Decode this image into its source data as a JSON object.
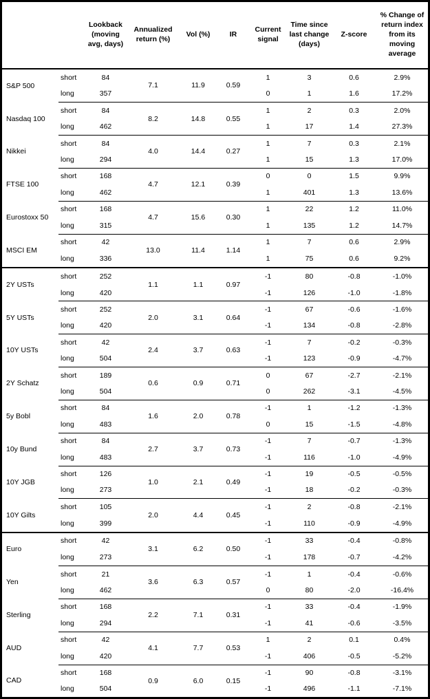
{
  "colors": {
    "text": "#000000",
    "border": "#000000",
    "background": "#ffffff"
  },
  "table": {
    "headers": [
      "",
      "",
      "Lookback\n(moving\navg, days)",
      "Annualized\nreturn (%)",
      "Vol (%)",
      "IR",
      "Current\nsignal",
      "Time since\nlast change\n(days)",
      "Z-score",
      "% Change of\nreturn index\nfrom its\nmoving\naverage"
    ],
    "sections": [
      {
        "groups": [
          {
            "asset": "S&P 500",
            "ann_return": "7.1",
            "vol": "11.9",
            "ir": "0.59",
            "rows": [
              {
                "horizon": "short",
                "lookback": "84",
                "signal": "1",
                "time_since": "3",
                "z_score": "0.6",
                "pct_change": "2.9%"
              },
              {
                "horizon": "long",
                "lookback": "357",
                "signal": "0",
                "time_since": "1",
                "z_score": "1.6",
                "pct_change": "17.2%"
              }
            ]
          },
          {
            "asset": "Nasdaq 100",
            "ann_return": "8.2",
            "vol": "14.8",
            "ir": "0.55",
            "rows": [
              {
                "horizon": "short",
                "lookback": "84",
                "signal": "1",
                "time_since": "2",
                "z_score": "0.3",
                "pct_change": "2.0%"
              },
              {
                "horizon": "long",
                "lookback": "462",
                "signal": "1",
                "time_since": "17",
                "z_score": "1.4",
                "pct_change": "27.3%"
              }
            ]
          },
          {
            "asset": "Nikkei",
            "ann_return": "4.0",
            "vol": "14.4",
            "ir": "0.27",
            "rows": [
              {
                "horizon": "short",
                "lookback": "84",
                "signal": "1",
                "time_since": "7",
                "z_score": "0.3",
                "pct_change": "2.1%"
              },
              {
                "horizon": "long",
                "lookback": "294",
                "signal": "1",
                "time_since": "15",
                "z_score": "1.3",
                "pct_change": "17.0%"
              }
            ]
          },
          {
            "asset": "FTSE 100",
            "ann_return": "4.7",
            "vol": "12.1",
            "ir": "0.39",
            "rows": [
              {
                "horizon": "short",
                "lookback": "168",
                "signal": "0",
                "time_since": "0",
                "z_score": "1.5",
                "pct_change": "9.9%"
              },
              {
                "horizon": "long",
                "lookback": "462",
                "signal": "1",
                "time_since": "401",
                "z_score": "1.3",
                "pct_change": "13.6%"
              }
            ]
          },
          {
            "asset": "Eurostoxx 50",
            "ann_return": "4.7",
            "vol": "15.6",
            "ir": "0.30",
            "rows": [
              {
                "horizon": "short",
                "lookback": "168",
                "signal": "1",
                "time_since": "22",
                "z_score": "1.2",
                "pct_change": "11.0%"
              },
              {
                "horizon": "long",
                "lookback": "315",
                "signal": "1",
                "time_since": "135",
                "z_score": "1.2",
                "pct_change": "14.7%"
              }
            ]
          },
          {
            "asset": "MSCI EM",
            "ann_return": "13.0",
            "vol": "11.4",
            "ir": "1.14",
            "rows": [
              {
                "horizon": "short",
                "lookback": "42",
                "signal": "1",
                "time_since": "7",
                "z_score": "0.6",
                "pct_change": "2.9%"
              },
              {
                "horizon": "long",
                "lookback": "336",
                "signal": "1",
                "time_since": "75",
                "z_score": "0.6",
                "pct_change": "9.2%"
              }
            ]
          }
        ]
      },
      {
        "groups": [
          {
            "asset": "2Y USTs",
            "ann_return": "1.1",
            "vol": "1.1",
            "ir": "0.97",
            "rows": [
              {
                "horizon": "short",
                "lookback": "252",
                "signal": "-1",
                "time_since": "80",
                "z_score": "-0.8",
                "pct_change": "-1.0%"
              },
              {
                "horizon": "long",
                "lookback": "420",
                "signal": "-1",
                "time_since": "126",
                "z_score": "-1.0",
                "pct_change": "-1.8%"
              }
            ]
          },
          {
            "asset": "5Y USTs",
            "ann_return": "2.0",
            "vol": "3.1",
            "ir": "0.64",
            "rows": [
              {
                "horizon": "short",
                "lookback": "252",
                "signal": "-1",
                "time_since": "67",
                "z_score": "-0.6",
                "pct_change": "-1.6%"
              },
              {
                "horizon": "long",
                "lookback": "420",
                "signal": "-1",
                "time_since": "134",
                "z_score": "-0.8",
                "pct_change": "-2.8%"
              }
            ]
          },
          {
            "asset": "10Y USTs",
            "ann_return": "2.4",
            "vol": "3.7",
            "ir": "0.63",
            "rows": [
              {
                "horizon": "short",
                "lookback": "42",
                "signal": "-1",
                "time_since": "7",
                "z_score": "-0.2",
                "pct_change": "-0.3%"
              },
              {
                "horizon": "long",
                "lookback": "504",
                "signal": "-1",
                "time_since": "123",
                "z_score": "-0.9",
                "pct_change": "-4.7%"
              }
            ]
          },
          {
            "asset": "2Y Schatz",
            "ann_return": "0.6",
            "vol": "0.9",
            "ir": "0.71",
            "rows": [
              {
                "horizon": "short",
                "lookback": "189",
                "signal": "0",
                "time_since": "67",
                "z_score": "-2.7",
                "pct_change": "-2.1%"
              },
              {
                "horizon": "long",
                "lookback": "504",
                "signal": "0",
                "time_since": "262",
                "z_score": "-3.1",
                "pct_change": "-4.5%"
              }
            ]
          },
          {
            "asset": "5y Bobl",
            "ann_return": "1.6",
            "vol": "2.0",
            "ir": "0.78",
            "rows": [
              {
                "horizon": "short",
                "lookback": "84",
                "signal": "-1",
                "time_since": "1",
                "z_score": "-1.2",
                "pct_change": "-1.3%"
              },
              {
                "horizon": "long",
                "lookback": "483",
                "signal": "0",
                "time_since": "15",
                "z_score": "-1.5",
                "pct_change": "-4.8%"
              }
            ]
          },
          {
            "asset": "10y Bund",
            "ann_return": "2.7",
            "vol": "3.7",
            "ir": "0.73",
            "rows": [
              {
                "horizon": "short",
                "lookback": "84",
                "signal": "-1",
                "time_since": "7",
                "z_score": "-0.7",
                "pct_change": "-1.3%"
              },
              {
                "horizon": "long",
                "lookback": "483",
                "signal": "-1",
                "time_since": "116",
                "z_score": "-1.0",
                "pct_change": "-4.9%"
              }
            ]
          },
          {
            "asset": "10Y JGB",
            "ann_return": "1.0",
            "vol": "2.1",
            "ir": "0.49",
            "rows": [
              {
                "horizon": "short",
                "lookback": "126",
                "signal": "-1",
                "time_since": "19",
                "z_score": "-0.5",
                "pct_change": "-0.5%"
              },
              {
                "horizon": "long",
                "lookback": "273",
                "signal": "-1",
                "time_since": "18",
                "z_score": "-0.2",
                "pct_change": "-0.3%"
              }
            ]
          },
          {
            "asset": "10Y Gilts",
            "ann_return": "2.0",
            "vol": "4.4",
            "ir": "0.45",
            "rows": [
              {
                "horizon": "short",
                "lookback": "105",
                "signal": "-1",
                "time_since": "2",
                "z_score": "-0.8",
                "pct_change": "-2.1%"
              },
              {
                "horizon": "long",
                "lookback": "399",
                "signal": "-1",
                "time_since": "110",
                "z_score": "-0.9",
                "pct_change": "-4.9%"
              }
            ]
          }
        ]
      },
      {
        "groups": [
          {
            "asset": "Euro",
            "ann_return": "3.1",
            "vol": "6.2",
            "ir": "0.50",
            "rows": [
              {
                "horizon": "short",
                "lookback": "42",
                "signal": "-1",
                "time_since": "33",
                "z_score": "-0.4",
                "pct_change": "-0.8%"
              },
              {
                "horizon": "long",
                "lookback": "273",
                "signal": "-1",
                "time_since": "178",
                "z_score": "-0.7",
                "pct_change": "-4.2%"
              }
            ]
          },
          {
            "asset": "Yen",
            "ann_return": "3.6",
            "vol": "6.3",
            "ir": "0.57",
            "rows": [
              {
                "horizon": "short",
                "lookback": "21",
                "signal": "-1",
                "time_since": "1",
                "z_score": "-0.4",
                "pct_change": "-0.6%"
              },
              {
                "horizon": "long",
                "lookback": "462",
                "signal": "0",
                "time_since": "80",
                "z_score": "-2.0",
                "pct_change": "-16.4%"
              }
            ]
          },
          {
            "asset": "Sterling",
            "ann_return": "2.2",
            "vol": "7.1",
            "ir": "0.31",
            "rows": [
              {
                "horizon": "short",
                "lookback": "168",
                "signal": "-1",
                "time_since": "33",
                "z_score": "-0.4",
                "pct_change": "-1.9%"
              },
              {
                "horizon": "long",
                "lookback": "294",
                "signal": "-1",
                "time_since": "41",
                "z_score": "-0.6",
                "pct_change": "-3.5%"
              }
            ]
          },
          {
            "asset": "AUD",
            "ann_return": "4.1",
            "vol": "7.7",
            "ir": "0.53",
            "rows": [
              {
                "horizon": "short",
                "lookback": "42",
                "signal": "1",
                "time_since": "2",
                "z_score": "0.1",
                "pct_change": "0.4%"
              },
              {
                "horizon": "long",
                "lookback": "420",
                "signal": "-1",
                "time_since": "406",
                "z_score": "-0.5",
                "pct_change": "-5.2%"
              }
            ]
          },
          {
            "asset": "CAD",
            "ann_return": "0.9",
            "vol": "6.0",
            "ir": "0.15",
            "rows": [
              {
                "horizon": "short",
                "lookback": "168",
                "signal": "-1",
                "time_since": "90",
                "z_score": "-0.8",
                "pct_change": "-3.1%"
              },
              {
                "horizon": "long",
                "lookback": "504",
                "signal": "-1",
                "time_since": "496",
                "z_score": "-1.1",
                "pct_change": "-7.1%"
              }
            ]
          }
        ]
      }
    ]
  }
}
